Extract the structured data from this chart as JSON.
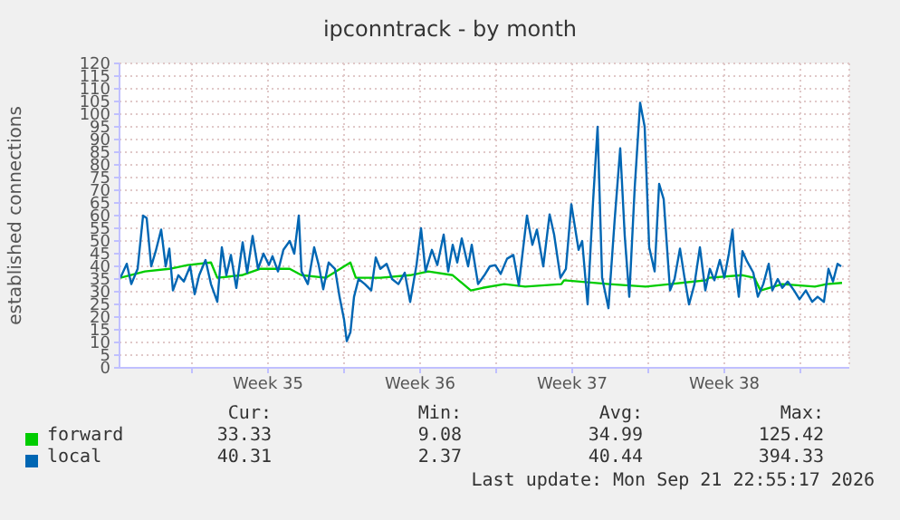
{
  "chart_data": {
    "type": "line",
    "title": "ipconntrack - by month",
    "ylabel": "established connections",
    "xlim": [
      "2026-08-19T17:00",
      "2026-09-22T07:00"
    ],
    "xticks": [
      {
        "value": "2026-08-23T01:00",
        "label": null
      },
      {
        "value": "2026-08-26T13:00",
        "label": "Week 35"
      },
      {
        "value": "2026-08-30T01:00",
        "label": null
      },
      {
        "value": "2026-09-02T13:00",
        "label": "Week 36"
      },
      {
        "value": "2026-09-06T01:00",
        "label": null
      },
      {
        "value": "2026-09-09T13:00",
        "label": "Week 37"
      },
      {
        "value": "2026-09-13T01:00",
        "label": null
      },
      {
        "value": "2026-09-16T13:00",
        "label": "Week 38"
      },
      {
        "value": "2026-09-20T01:00",
        "label": null
      }
    ],
    "ylim": [
      0,
      120
    ],
    "yticks": [
      0,
      5,
      10,
      15,
      20,
      25,
      30,
      35,
      40,
      45,
      50,
      55,
      60,
      65,
      70,
      75,
      80,
      85,
      90,
      95,
      100,
      105,
      110,
      115,
      120
    ],
    "grid": true,
    "legend": "bottom",
    "marker": "none",
    "line_style": "solid",
    "series": [
      {
        "name": "forward",
        "color": "#00cc00",
        "x": [
          "2026-08-19T18:00",
          "2026-08-20T21:00",
          "2026-08-22T00:00",
          "2026-08-22T20:00",
          "2026-08-23T22:00",
          "2026-08-24T05:00",
          "2026-08-25T08:00",
          "2026-08-26T04:00",
          "2026-08-27T13:00",
          "2026-08-28T02:00",
          "2026-08-29T05:00",
          "2026-08-30T08:00",
          "2026-08-30T14:00",
          "2026-08-31T17:00",
          "2026-09-02T02:00",
          "2026-09-02T22:00",
          "2026-09-04T01:00",
          "2026-09-04T21:00",
          "2026-09-05T10:00",
          "2026-09-06T10:00",
          "2026-09-07T09:00",
          "2026-09-09T01:00",
          "2026-09-09T04:00",
          "2026-09-11T06:00",
          "2026-09-12T22:00",
          "2026-09-14T01:00",
          "2026-09-15T17:00",
          "2026-09-15T20:00",
          "2026-09-17T09:00",
          "2026-09-17T22:00",
          "2026-09-18T05:00",
          "2026-09-19T05:00",
          "2026-09-20T17:00",
          "2026-09-21T06:00",
          "2026-09-21T23:00"
        ],
        "values": [
          35.5,
          38,
          39,
          40.5,
          41.5,
          35.5,
          36.5,
          39,
          39,
          36.5,
          35.5,
          41.5,
          35.5,
          35.5,
          36.5,
          38,
          36.5,
          30.5,
          31.5,
          33,
          32,
          33,
          34.5,
          33,
          32,
          33,
          34.5,
          35.5,
          36.5,
          35.5,
          30.5,
          33,
          32,
          33,
          33.5
        ]
      },
      {
        "name": "local",
        "color": "#0066b3",
        "x": [
          "2026-08-19T18:00",
          "2026-08-20T01:00",
          "2026-08-20T06:00",
          "2026-08-20T13:00",
          "2026-08-20T19:00",
          "2026-08-20T23:00",
          "2026-08-21T04:00",
          "2026-08-21T09:00",
          "2026-08-21T15:00",
          "2026-08-21T20:00",
          "2026-08-22T00:00",
          "2026-08-22T04:00",
          "2026-08-22T10:00",
          "2026-08-22T16:00",
          "2026-08-22T23:00",
          "2026-08-23T04:00",
          "2026-08-23T09:00",
          "2026-08-23T16:00",
          "2026-08-23T22:00",
          "2026-08-24T05:00",
          "2026-08-24T10:00",
          "2026-08-24T15:00",
          "2026-08-24T20:00",
          "2026-08-25T02:00",
          "2026-08-25T09:00",
          "2026-08-25T14:00",
          "2026-08-25T20:00",
          "2026-08-26T02:00",
          "2026-08-26T08:00",
          "2026-08-26T14:00",
          "2026-08-26T18:00",
          "2026-08-27T00:00",
          "2026-08-27T06:00",
          "2026-08-27T13:00",
          "2026-08-27T18:00",
          "2026-08-27T23:00",
          "2026-08-28T02:00",
          "2026-08-28T09:00",
          "2026-08-28T16:00",
          "2026-08-28T21:00",
          "2026-08-29T02:00",
          "2026-08-29T08:00",
          "2026-08-29T15:00",
          "2026-08-29T20:00",
          "2026-08-30T01:00",
          "2026-08-30T04:00",
          "2026-08-30T08:00",
          "2026-08-30T12:00",
          "2026-08-30T17:00",
          "2026-08-31T00:00",
          "2026-08-31T07:00",
          "2026-08-31T12:00",
          "2026-08-31T17:00",
          "2026-09-01T00:00",
          "2026-09-01T06:00",
          "2026-09-01T13:00",
          "2026-09-01T20:00",
          "2026-09-02T02:00",
          "2026-09-02T09:00",
          "2026-09-02T14:00",
          "2026-09-02T19:00",
          "2026-09-03T02:00",
          "2026-09-03T08:00",
          "2026-09-03T15:00",
          "2026-09-03T20:00",
          "2026-09-04T01:00",
          "2026-09-04T06:00",
          "2026-09-04T11:00",
          "2026-09-04T18:00",
          "2026-09-04T22:00",
          "2026-09-05T05:00",
          "2026-09-05T12:00",
          "2026-09-05T18:00",
          "2026-09-06T00:00",
          "2026-09-06T06:00",
          "2026-09-06T13:00",
          "2026-09-06T20:00",
          "2026-09-07T02:00",
          "2026-09-07T11:00",
          "2026-09-07T17:00",
          "2026-09-07T22:00",
          "2026-09-08T05:00",
          "2026-09-08T12:00",
          "2026-09-08T17:00",
          "2026-09-09T00:00",
          "2026-09-09T06:00",
          "2026-09-09T12:00",
          "2026-09-09T20:00",
          "2026-09-10T00:00",
          "2026-09-10T06:00",
          "2026-09-10T12:00",
          "2026-09-10T17:00",
          "2026-09-10T22:00",
          "2026-09-11T05:00",
          "2026-09-11T12:00",
          "2026-09-11T18:00",
          "2026-09-11T23:00",
          "2026-09-12T04:00",
          "2026-09-12T10:00",
          "2026-09-12T16:00",
          "2026-09-12T21:00",
          "2026-09-13T02:00",
          "2026-09-13T08:00",
          "2026-09-13T13:00",
          "2026-09-13T18:00",
          "2026-09-14T01:00",
          "2026-09-14T06:00",
          "2026-09-14T12:00",
          "2026-09-14T17:00",
          "2026-09-14T22:00",
          "2026-09-15T04:00",
          "2026-09-15T10:00",
          "2026-09-15T16:00",
          "2026-09-15T21:00",
          "2026-09-16T02:00",
          "2026-09-16T08:00",
          "2026-09-16T13:00",
          "2026-09-16T18:00",
          "2026-09-16T22:00",
          "2026-09-17T01:00",
          "2026-09-17T05:00",
          "2026-09-17T09:00",
          "2026-09-17T14:00",
          "2026-09-17T21:00",
          "2026-09-18T02:00",
          "2026-09-18T08:00",
          "2026-09-18T14:00",
          "2026-09-18T18:00",
          "2026-09-19T00:00",
          "2026-09-19T05:00",
          "2026-09-19T11:00",
          "2026-09-19T18:00",
          "2026-09-20T00:00",
          "2026-09-20T07:00",
          "2026-09-20T14:00",
          "2026-09-20T20:00",
          "2026-09-21T03:00",
          "2026-09-21T08:00",
          "2026-09-21T13:00",
          "2026-09-21T18:00",
          "2026-09-21T22:00"
        ],
        "values": [
          35.5,
          41,
          33,
          39,
          60,
          59,
          40,
          46,
          54.5,
          40,
          47,
          30.5,
          36.5,
          34,
          40,
          29,
          36.5,
          42.5,
          33,
          26,
          47.5,
          36.5,
          44.5,
          31.5,
          49.5,
          37.5,
          52,
          39,
          45,
          40.5,
          44,
          38,
          46.5,
          50,
          45,
          60,
          38,
          33,
          47.5,
          40.5,
          31,
          41.5,
          39,
          28,
          19,
          10.5,
          14,
          28,
          35,
          33,
          30.5,
          43.5,
          39,
          41,
          35,
          33,
          37.5,
          26,
          40.5,
          55,
          38,
          46.5,
          40.5,
          52.5,
          38,
          48.5,
          41.5,
          51,
          40,
          48.5,
          33,
          36.5,
          40,
          40.5,
          37,
          43,
          44.5,
          32.5,
          60,
          48.5,
          54.5,
          40,
          60.5,
          52.5,
          35.5,
          39,
          64.5,
          46.5,
          50,
          25,
          65.5,
          95,
          35.5,
          23.5,
          59,
          86.5,
          52,
          28,
          71,
          104.5,
          95,
          47.5,
          38,
          72.5,
          66.5,
          30.5,
          35,
          47,
          35.5,
          25,
          33,
          47.5,
          30.5,
          39,
          34.5,
          42.5,
          35.5,
          45,
          54.5,
          40,
          28,
          46,
          42,
          37.5,
          28,
          33,
          41,
          30.5,
          35,
          31.5,
          34,
          30.5,
          27,
          30.5,
          26,
          28,
          26,
          39,
          34,
          41,
          40
        ]
      }
    ],
    "annotations": [
      "Cur:",
      "Min:",
      "Avg:",
      "Max:",
      "33.33",
      "9.08",
      "34.99",
      "125.42",
      "40.31",
      "2.37",
      "40.44",
      "394.33",
      "Last update: Mon Sep 21 22:55:17 2026"
    ]
  }
}
